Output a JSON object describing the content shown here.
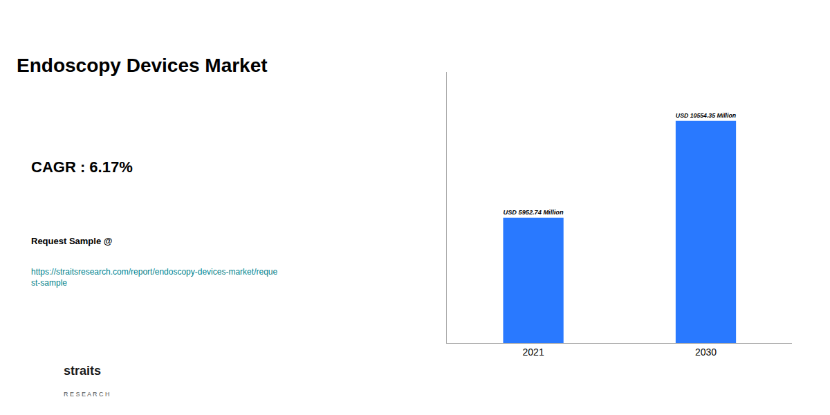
{
  "chart_data": {
    "type": "bar",
    "title": "Endoscopy Devices Market",
    "categories": [
      "2021",
      "2030"
    ],
    "values": [
      5952.74,
      10554.35
    ],
    "value_labels": [
      "USD 5952.74 Million",
      "USD 10554.35 Million"
    ],
    "data_labels": true,
    "color": "#2979FF",
    "ylim": [
      0,
      12876.307
    ],
    "tick_labels": "x",
    "grid": false,
    "annotations": [
      "CAGR : 6.17%",
      "Request Sample @",
      "https://straitsresearch.com/report/endoscopy-devices-market/reque\nst-sample",
      "straits",
      "R E S E A R C H"
    ]
  }
}
